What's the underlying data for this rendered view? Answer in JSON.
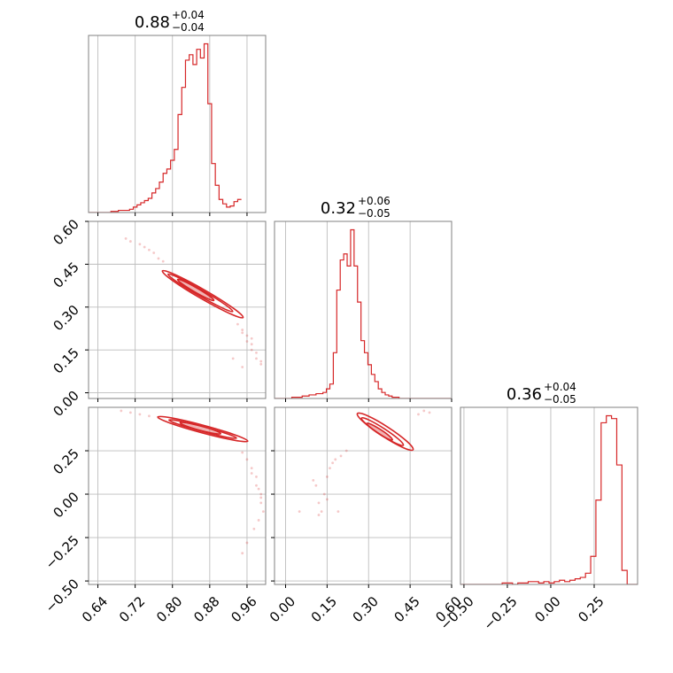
{
  "chart_data": {
    "type": "corner",
    "color": "#d62728",
    "grid": true,
    "panels": {
      "p0": {
        "kind": "histogram",
        "param": 0,
        "title": {
          "median": "0.88",
          "plus": "+0.04",
          "minus": "−0.04"
        },
        "x_range": [
          0.62,
          1.0
        ],
        "x_ticks": [
          0.64,
          0.72,
          0.8,
          0.88,
          0.96
        ],
        "bin_width": 0.008,
        "bins_start": 0.62,
        "counts": [
          0,
          0,
          0,
          0,
          0,
          0,
          1,
          1,
          2,
          2,
          2,
          3,
          5,
          7,
          9,
          11,
          13,
          18,
          22,
          28,
          36,
          40,
          48,
          58,
          90,
          115,
          140,
          145,
          136,
          150,
          142,
          155,
          100,
          45,
          25,
          12,
          8,
          5,
          6,
          10,
          12
        ]
      },
      "p1": {
        "kind": "histogram",
        "param": 1,
        "title": {
          "median": "0.32",
          "plus": "+0.06",
          "minus": "−0.05"
        },
        "x_range": [
          -0.04,
          0.6
        ],
        "x_ticks": [
          0.0,
          0.15,
          0.3,
          0.45,
          0.6
        ],
        "bin_width": 0.0125,
        "bins_start": -0.04,
        "counts": [
          0,
          0,
          0,
          0,
          0,
          1,
          1,
          1,
          2,
          2,
          3,
          3,
          4,
          4,
          5,
          8,
          12,
          38,
          90,
          115,
          120,
          110,
          140,
          110,
          80,
          48,
          38,
          28,
          20,
          14,
          8,
          5,
          3,
          2,
          1,
          1,
          0,
          0,
          0,
          0,
          0,
          0,
          0,
          0,
          0,
          0,
          0,
          0,
          0,
          0,
          0
        ]
      },
      "p2": {
        "kind": "histogram",
        "param": 2,
        "title": {
          "median": "0.36",
          "plus": "+0.04",
          "minus": "−0.05"
        },
        "x_range": [
          -0.52,
          0.5
        ],
        "x_ticks": [
          -0.5,
          -0.25,
          0.0,
          0.25
        ],
        "bin_width": 0.03,
        "bins_start": -0.52,
        "counts": [
          0,
          0,
          0,
          0,
          0,
          0,
          0,
          0,
          1,
          1,
          0,
          1,
          1,
          2,
          2,
          1,
          2,
          1,
          2,
          3,
          2,
          3,
          4,
          5,
          8,
          20,
          60,
          115,
          120,
          118,
          85,
          10,
          0,
          0
        ]
      },
      "p10": {
        "kind": "pair",
        "x_param": 0,
        "y_param": 1,
        "x_range": [
          0.62,
          1.0
        ],
        "y_range": [
          -0.02,
          0.6
        ],
        "y_ticks": [
          0.0,
          0.15,
          0.3,
          0.45,
          0.6
        ],
        "x_tick_marks": [
          0.64,
          0.72,
          0.8,
          0.88,
          0.96
        ],
        "scatter": [
          [
            0.7,
            0.54
          ],
          [
            0.71,
            0.53
          ],
          [
            0.73,
            0.52
          ],
          [
            0.74,
            0.51
          ],
          [
            0.75,
            0.5
          ],
          [
            0.76,
            0.49
          ],
          [
            0.77,
            0.47
          ],
          [
            0.78,
            0.46
          ],
          [
            0.95,
            0.22
          ],
          [
            0.96,
            0.2
          ],
          [
            0.96,
            0.18
          ],
          [
            0.97,
            0.17
          ],
          [
            0.97,
            0.15
          ],
          [
            0.98,
            0.14
          ],
          [
            0.98,
            0.12
          ],
          [
            0.99,
            0.11
          ],
          [
            0.99,
            0.1
          ],
          [
            0.94,
            0.24
          ],
          [
            0.95,
            0.21
          ],
          [
            0.97,
            0.19
          ],
          [
            0.93,
            0.12
          ],
          [
            0.95,
            0.09
          ]
        ],
        "contours": [
          {
            "ellipse": {
              "cx": 0.865,
              "cy": 0.345,
              "rx": 0.1,
              "ry": 0.016,
              "deg": 30
            }
          },
          {
            "ellipse": {
              "cx": 0.86,
              "cy": 0.35,
              "rx": 0.08,
              "ry": 0.011,
              "deg": 30
            }
          },
          {
            "ellipse": {
              "cx": 0.85,
              "cy": 0.36,
              "rx": 0.045,
              "ry": 0.007,
              "deg": 30
            }
          }
        ]
      },
      "p20": {
        "kind": "pair",
        "x_param": 0,
        "y_param": 2,
        "x_range": [
          0.62,
          1.0
        ],
        "y_range": [
          -0.52,
          0.5
        ],
        "y_ticks": [
          -0.5,
          -0.25,
          0.0,
          0.25
        ],
        "x_ticks": [
          0.64,
          0.72,
          0.8,
          0.88,
          0.96
        ],
        "scatter": [
          [
            0.69,
            0.48
          ],
          [
            0.71,
            0.47
          ],
          [
            0.73,
            0.46
          ],
          [
            0.75,
            0.45
          ],
          [
            0.77,
            0.44
          ],
          [
            0.95,
            0.24
          ],
          [
            0.96,
            0.2
          ],
          [
            0.97,
            0.15
          ],
          [
            0.98,
            0.1
          ],
          [
            0.98,
            0.05
          ],
          [
            0.99,
            0.0
          ],
          [
            0.99,
            -0.05
          ],
          [
            0.995,
            -0.1
          ],
          [
            0.985,
            -0.15
          ],
          [
            0.975,
            -0.2
          ],
          [
            0.96,
            -0.28
          ],
          [
            0.95,
            -0.34
          ],
          [
            0.99,
            -0.02
          ],
          [
            0.985,
            0.03
          ],
          [
            0.97,
            0.12
          ]
        ],
        "contours": [
          {
            "ellipse": {
              "cx": 0.865,
              "cy": 0.375,
              "rx": 0.1,
              "ry": 0.022,
              "deg": 15
            }
          },
          {
            "ellipse": {
              "cx": 0.865,
              "cy": 0.375,
              "rx": 0.075,
              "ry": 0.014,
              "deg": 15
            }
          },
          {
            "ellipse": {
              "cx": 0.86,
              "cy": 0.38,
              "rx": 0.045,
              "ry": 0.008,
              "deg": 15
            }
          }
        ]
      },
      "p21": {
        "kind": "pair",
        "x_param": 1,
        "y_param": 2,
        "x_range": [
          -0.04,
          0.6
        ],
        "y_range": [
          -0.52,
          0.5
        ],
        "x_ticks": [
          0.0,
          0.15,
          0.3,
          0.45,
          0.6
        ],
        "y_tick_marks": [
          -0.5,
          -0.25,
          0.0,
          0.25
        ],
        "scatter": [
          [
            0.1,
            0.08
          ],
          [
            0.11,
            0.05
          ],
          [
            0.12,
            -0.05
          ],
          [
            0.13,
            -0.1
          ],
          [
            0.12,
            -0.12
          ],
          [
            0.14,
            0.0
          ],
          [
            0.15,
            0.1
          ],
          [
            0.16,
            0.15
          ],
          [
            0.17,
            0.18
          ],
          [
            0.18,
            0.2
          ],
          [
            0.2,
            0.22
          ],
          [
            0.22,
            0.25
          ],
          [
            0.05,
            -0.1
          ],
          [
            0.19,
            -0.1
          ],
          [
            0.15,
            -0.03
          ],
          [
            0.5,
            0.48
          ],
          [
            0.52,
            0.47
          ],
          [
            0.48,
            0.46
          ]
        ],
        "contours": [
          {
            "ellipse": {
              "cx": 0.36,
              "cy": 0.36,
              "rx": 0.12,
              "ry": 0.03,
              "deg": 33
            }
          },
          {
            "ellipse": {
              "cx": 0.35,
              "cy": 0.36,
              "rx": 0.09,
              "ry": 0.02,
              "deg": 33
            }
          },
          {
            "ellipse": {
              "cx": 0.34,
              "cy": 0.36,
              "rx": 0.055,
              "ry": 0.011,
              "deg": 33
            }
          }
        ]
      }
    }
  }
}
